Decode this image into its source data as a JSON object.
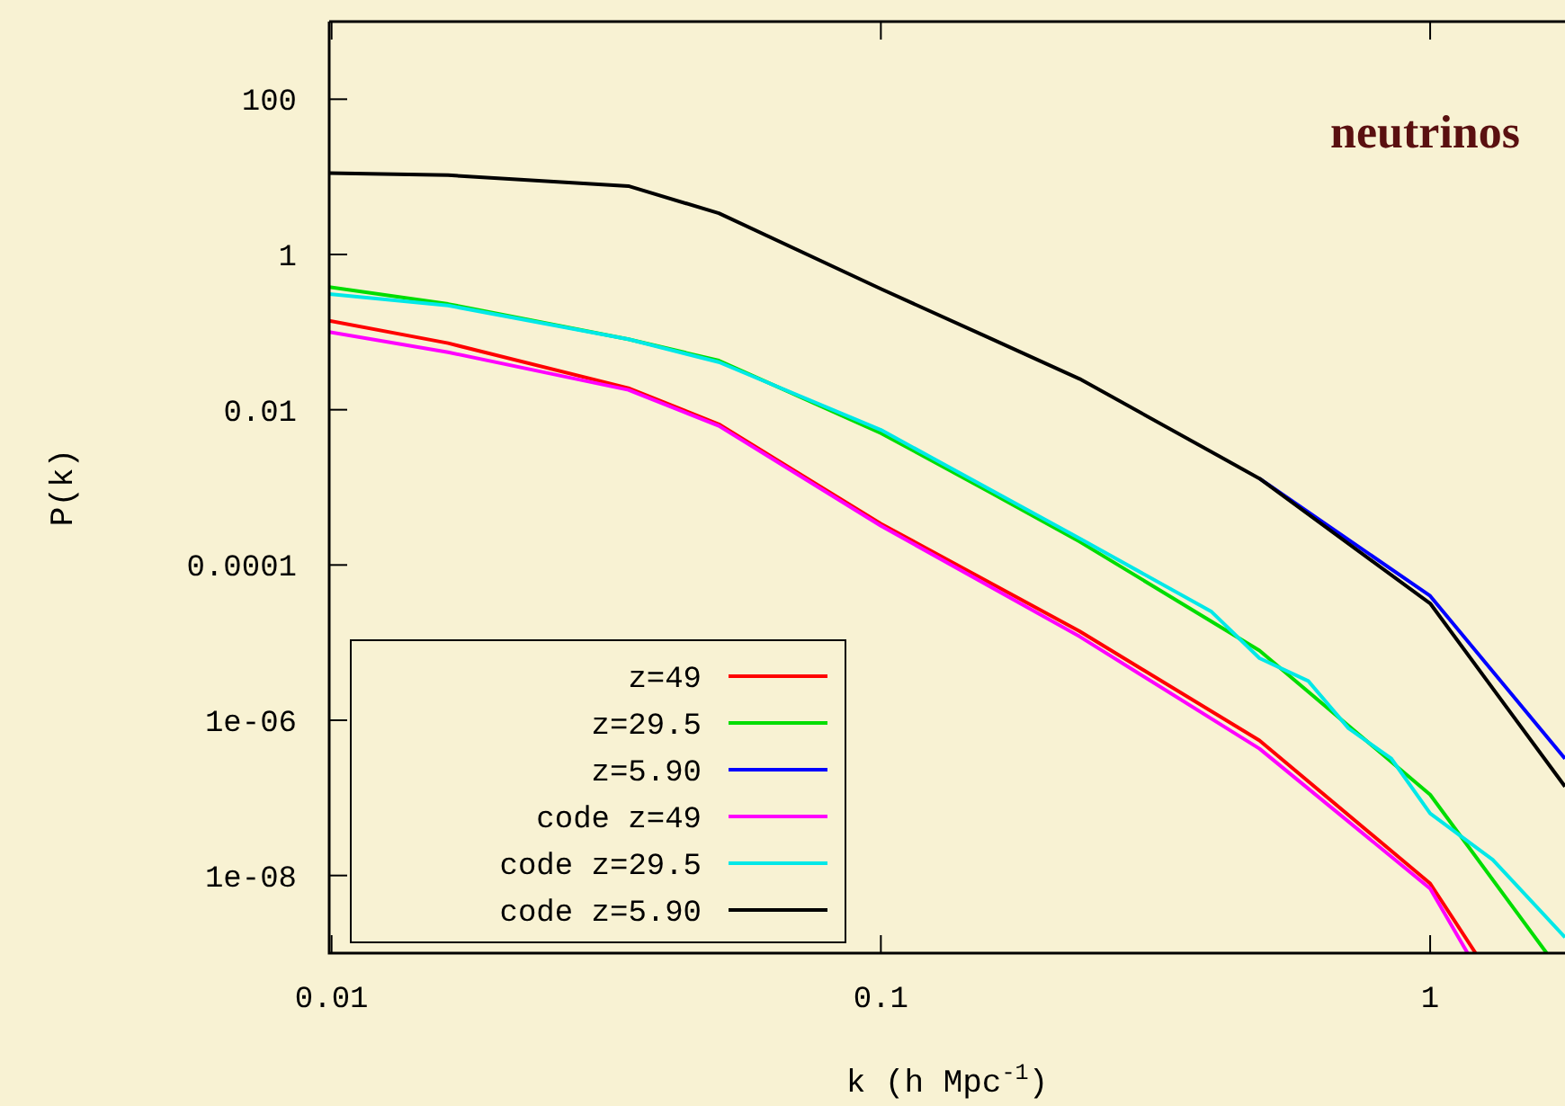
{
  "chart_data": {
    "type": "line",
    "xlabel": "k (h Mpc$^{-1}$)",
    "ylabel": "P(k)",
    "annotations": [
      "neutrinos"
    ],
    "log": "xy",
    "grid": false,
    "legend": "bottom left",
    "xlim": [
      0.0099,
      1.76
    ],
    "ylim": [
      1e-09,
      1000
    ],
    "xticks": [
      0.01,
      0.1,
      1
    ],
    "yticks": [
      100,
      1,
      0.01,
      0.0001,
      {
        "value": 1e-06,
        "label": "1e-06"
      },
      {
        "value": 1e-08,
        "label": "1e-08"
      }
    ],
    "series": [
      {
        "name": "z=49",
        "color": "#ff0000",
        "x": [
          0.0099,
          0.0163,
          0.0347,
          0.0507,
          0.1,
          0.23,
          0.489,
          1,
          1.21
        ],
        "values": [
          0.14,
          0.072,
          0.019,
          0.0065,
          0.00034,
          1.4e-05,
          5.5e-07,
          7.9e-09,
          1e-09
        ]
      },
      {
        "name": "z=29.5",
        "color": "#00dd00",
        "x": [
          0.0099,
          0.0163,
          0.0347,
          0.0507,
          0.1,
          0.157,
          0.23,
          0.489,
          1,
          1.63
        ],
        "values": [
          0.38,
          0.23,
          0.081,
          0.043,
          0.005,
          0.00089,
          0.0002,
          7.9e-06,
          1.1e-07,
          1e-09
        ]
      },
      {
        "name": "z=5.90",
        "color": "#0000ff",
        "x": [
          0.489,
          1,
          1.76
        ],
        "values": [
          0.0013,
          4e-05,
          3.2e-07
        ]
      },
      {
        "name": "code z=49",
        "color": "#ff00ff",
        "x": [
          0.0099,
          0.0163,
          0.0347,
          0.0507,
          0.1,
          0.23,
          0.489,
          1,
          1.17
        ],
        "values": [
          0.1,
          0.055,
          0.018,
          0.0062,
          0.00032,
          1.2e-05,
          4.3e-07,
          6.8e-09,
          1e-09
        ]
      },
      {
        "name": "code z=29.5",
        "color": "#00e8e8",
        "x": [
          0.0099,
          0.0163,
          0.0347,
          0.0507,
          0.1,
          0.23,
          0.4,
          0.489,
          0.6,
          0.71,
          0.85,
          1,
          1.3,
          1.76
        ],
        "values": [
          0.31,
          0.22,
          0.081,
          0.041,
          0.0055,
          0.00022,
          2.5e-05,
          6.3e-06,
          3.2e-06,
          7.9e-07,
          3.2e-07,
          6.3e-08,
          1.6e-08,
          1.6e-09
        ]
      },
      {
        "name": "code z=5.90",
        "color": "#000000",
        "x": [
          0.0099,
          0.0163,
          0.0347,
          0.0507,
          0.1,
          0.157,
          0.23,
          0.489,
          1,
          1.76
        ],
        "values": [
          11.2,
          10.5,
          7.6,
          3.4,
          0.36,
          0.085,
          0.025,
          0.0013,
          3.2e-05,
          1.4e-07
        ]
      }
    ]
  }
}
